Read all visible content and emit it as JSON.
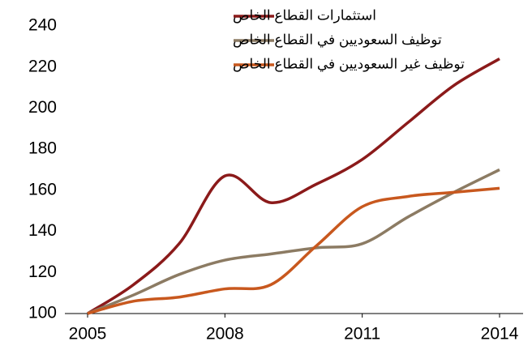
{
  "chart_data": {
    "type": "line",
    "x": [
      2005,
      2006,
      2007,
      2008,
      2009,
      2010,
      2011,
      2012,
      2013,
      2014
    ],
    "series": [
      {
        "name": "استثمارات القطاع الخاص",
        "color": "#8b1a1a",
        "values": [
          100,
          114,
          134,
          167,
          154,
          163,
          175,
          193,
          211,
          224
        ]
      },
      {
        "name": "توظيف السعوديين في القطاع الخاص",
        "color": "#8c7b63",
        "values": [
          100,
          109,
          119,
          126,
          129,
          132,
          134,
          147,
          159,
          170
        ]
      },
      {
        "name": "توظيف غير السعوديين في القطاع الخاص",
        "color": "#c8581e",
        "values": [
          100,
          106,
          108,
          112,
          114,
          133,
          152,
          157,
          159,
          161
        ]
      }
    ],
    "xlim": [
      2005,
      2014
    ],
    "xticks": [
      2005,
      2008,
      2011,
      2014
    ],
    "ylim": [
      100,
      240
    ],
    "yticks": [
      100,
      120,
      140,
      160,
      180,
      200,
      220,
      240
    ],
    "legend": "top"
  }
}
